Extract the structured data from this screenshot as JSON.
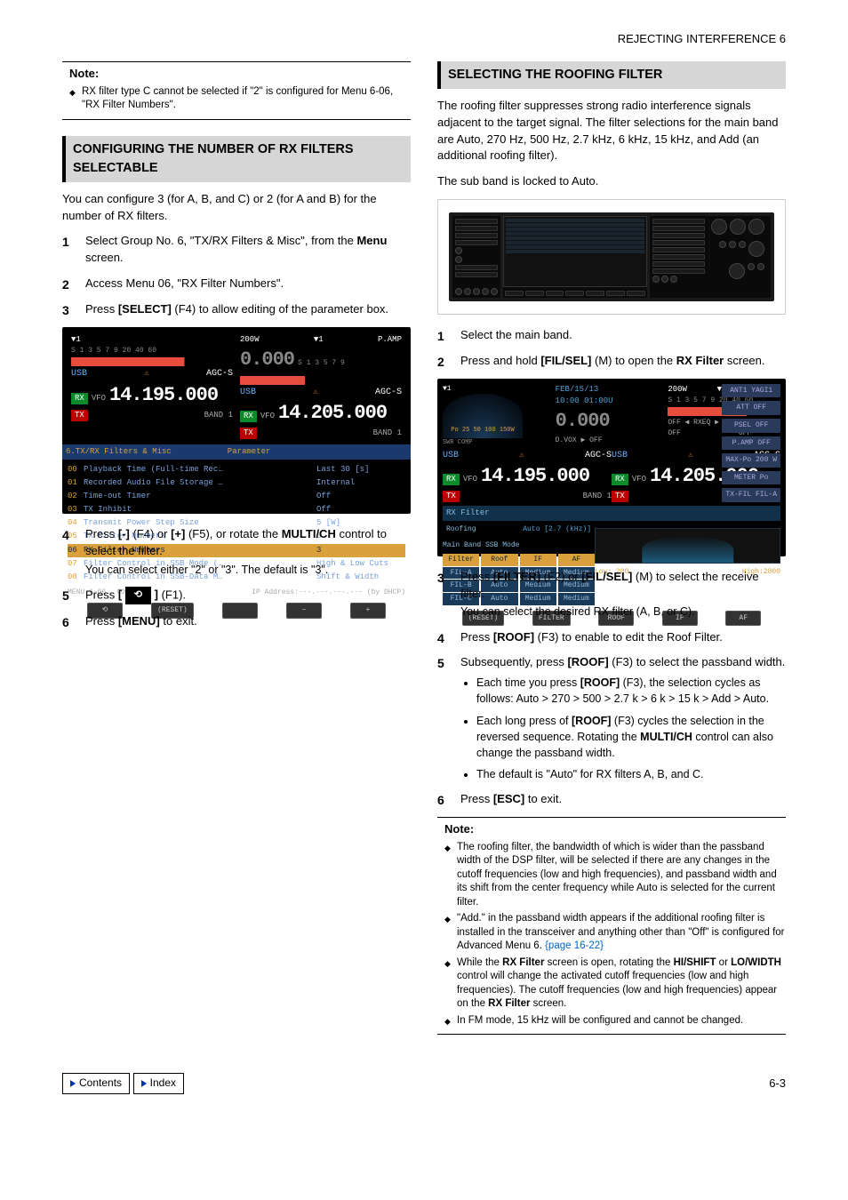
{
  "pageHeader": "REJECTING INTERFERENCE 6",
  "left": {
    "note1": {
      "label": "Note:",
      "items": [
        "RX filter type C cannot be selected if \"2\" is configured for Menu 6-06, \"RX Filter Numbers\"."
      ]
    },
    "heading1": "CONFIGURING THE NUMBER OF RX FILTERS SELECTABLE",
    "intro1": "You can configure 3 (for A, B, and C) or 2 (for A and B) for the number of RX filters.",
    "steps1": [
      {
        "n": "1",
        "t": "Select Group No. 6, \"TX/RX Filters & Misc\", from the <b>Menu</b> screen."
      },
      {
        "n": "2",
        "t": "Access Menu 06, \"RX Filter Numbers\"."
      },
      {
        "n": "3",
        "t": "Press <b>[SELECT]</b> (F4) to allow editing of the parameter box."
      }
    ],
    "steps2": [
      {
        "n": "4",
        "t": "Press <b>[-]</b> (F4) or <b>[+]</b> (F5), or rotate the <b>MULTI/CH</b> control to select the filter.",
        "sub": "You can select either \"2\" or \"3\". The default is \"3\"."
      },
      {
        "n": "5",
        "t": "Press <b>[ <span class='btn-icon'></span> ]</b> (F1)."
      },
      {
        "n": "6",
        "t": "Press <b>[MENU]</b> to exit."
      }
    ],
    "sc1": {
      "vfoA_freq": "14.195.000",
      "vfoB_freq": "14.205.000",
      "vfoB_sub": "0.000",
      "pw": "200W",
      "pamp": "P.AMP",
      "usb": "USB",
      "agc": "AGC-S",
      "vfo": "VFO",
      "band": "BAND 1",
      "menuHdr": "6.TX/RX Filters & Misc",
      "paramHdr": "Parameter",
      "rows": [
        {
          "n": "00",
          "l": "Playback Time (Full-time Rec…",
          "v": "Last 30 [s]"
        },
        {
          "n": "01",
          "l": "Recorded Audio File Storage …",
          "v": "Internal"
        },
        {
          "n": "02",
          "l": "Time-out Timer",
          "v": "Off"
        },
        {
          "n": "03",
          "l": "TX Inhibit",
          "v": "Off"
        },
        {
          "n": "04",
          "l": "Transmit Power Step Size",
          "v": "5 [W]"
        },
        {
          "n": "05",
          "l": "TX Filter Numbers",
          "v": "3"
        },
        {
          "n": "06",
          "l": "RX Filter Numbers",
          "v": "3",
          "sel": true
        },
        {
          "n": "07",
          "l": "Filter Control in SSB Mode (…",
          "v": "High & Low Cuts"
        },
        {
          "n": "08",
          "l": "Filter Control in SSB-Data M…",
          "v": "Shift & Width"
        }
      ],
      "footer1": "MENU 6-06",
      "footer2": "CONFIG A",
      "footer3": "IP Address:---.---.---.--- (by DHCP)",
      "sk": [
        "⟲",
        "(RESET)",
        "",
        "−",
        "+"
      ]
    }
  },
  "right": {
    "heading2": "SELECTING THE ROOFING FILTER",
    "intro2a": "The roofing filter suppresses strong radio interference signals adjacent to the target signal. The filter selections for the main band are Auto, 270 Hz, 500 Hz, 2.7 kHz, 6 kHz, 15 kHz, and Add (an additional roofing filter).",
    "intro2b": "The sub band is locked to Auto.",
    "steps3": [
      {
        "n": "1",
        "t": "Select the main band."
      },
      {
        "n": "2",
        "t": "Press and hold <b>[FIL/SEL]</b> (M) to open the <b>RX Filter</b> screen."
      }
    ],
    "steps4": [
      {
        "n": "3",
        "t": "Press <b>[FILTER]</b> (F2) or <b>[FIL/SEL]</b> (M) to select the receive filter.",
        "sub": "You can select the desired RX filter (A, B, or C)."
      },
      {
        "n": "4",
        "t": "Press <b>[ROOF]</b> (F3) to enable to edit the Roof Filter."
      },
      {
        "n": "5",
        "t": "Subsequently, press <b>[ROOF]</b> (F3) to select the passband width.",
        "bullets": [
          "Each time you press <b>[ROOF]</b> (F3), the selection cycles as follows: Auto > 270 > 500 > 2.7 k > 6 k > 15 k > Add > Auto.",
          "Each long press of <b>[ROOF]</b> (F3) cycles the selection in the reversed sequence. Rotating the <b>MULTI/CH</b> control can also change the passband width.",
          "The default is \"Auto\" for RX filters A, B, and C."
        ]
      },
      {
        "n": "6",
        "t": "Press <b>[ESC]</b> to exit."
      }
    ],
    "note2": {
      "label": "Note:",
      "items": [
        "The roofing filter, the bandwidth of which is wider than the passband width of the DSP filter, will be selected if there are any changes in the cutoff frequencies (low and high frequencies), and passband width and its shift from the center frequency while Auto is selected for the current filter.",
        "\"Add.\" in the passband width appears if the additional roofing filter is installed in the transceiver and anything other than \"Off\" is configured for Advanced Menu 6. <span class='link-ref'>{page 16-22}</span>",
        "While the <b>RX Filter</b> screen is open, rotating the <b>HI/SHIFT</b> or <b>LO/WIDTH</b> control will change the activated cutoff frequencies (low and high frequencies). The cutoff frequencies (low and high frequencies) appear on the <b>RX Filter</b> screen.",
        "In FM mode, 15 kHz will be configured and cannot be changed."
      ]
    },
    "sc3": {
      "date": "FEB/15/13",
      "time": "10:00 01:00U",
      "sub000": "0.000",
      "pw": "200W",
      "pamp": "P.AMP",
      "dvox": "D.VOX ▶ OFF",
      "rxeq": "OFF ◀ RXEQ ▶ OFF",
      "txeq": "TXEQ ▶ OFF",
      "usb": "USB",
      "agc": "AGC-S",
      "vfo": "VFO",
      "vfoA": "14.195.000",
      "vfoB": "14.205.000",
      "band": "BAND 1",
      "rxfilter": "RX Filter",
      "roofing": "Roofing",
      "roofval": "Auto [2.7 (kHz)]",
      "main": "Main Band  SSB Mode",
      "tblHdr": [
        "Filter",
        "Roof",
        "IF",
        "AF"
      ],
      "tblRows": [
        [
          "FIL-A",
          "Auto",
          "Medium",
          "Medium"
        ],
        [
          "FIL-B",
          "Auto",
          "Medium",
          "Medium"
        ],
        [
          "FIL-C",
          "Auto",
          "Medium",
          "Medium"
        ]
      ],
      "low": "Low: 200",
      "high": "High:2800",
      "sk": [
        "(RESET)",
        "FILTER",
        "ROOF",
        "IF",
        "AF"
      ],
      "sides": [
        "ANT1 YAGI1",
        "ATT OFF",
        "PSEL OFF",
        "P.AMP OFF",
        "MAX-Po 200 W",
        "METER Po",
        "TX-FIL FIL-A"
      ]
    }
  },
  "footer": {
    "contents": "Contents",
    "index": "Index",
    "pageNum": "6-3"
  }
}
